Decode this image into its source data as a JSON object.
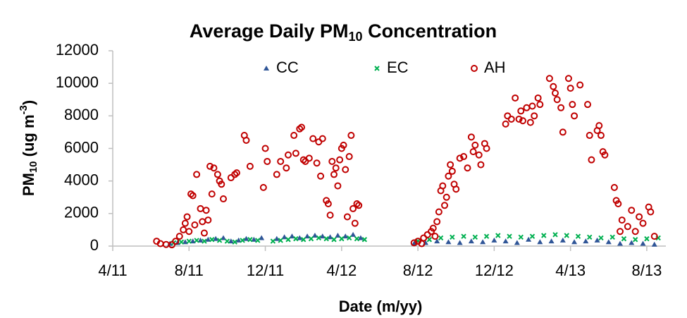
{
  "chart_data": {
    "type": "scatter",
    "title": {
      "text": "Average Daily PM",
      "sub": "10",
      "tail": " Concentration"
    },
    "y_label": {
      "text": "PM",
      "sub": "10",
      "mid": " (ug m",
      "sup": "-3",
      "tail": ")"
    },
    "x_label": "Date (m/yy)",
    "xlim": [
      3,
      32
    ],
    "xticks": [
      {
        "value": 3,
        "label": "4/11"
      },
      {
        "value": 7,
        "label": "8/11"
      },
      {
        "value": 11,
        "label": "12/11"
      },
      {
        "value": 15,
        "label": "4/12"
      },
      {
        "value": 19,
        "label": "8/12"
      },
      {
        "value": 23,
        "label": "12/12"
      },
      {
        "value": 27,
        "label": "4/13"
      },
      {
        "value": 31,
        "label": "8/13"
      }
    ],
    "ylim": [
      0,
      12000
    ],
    "yticks": [
      0,
      2000,
      4000,
      6000,
      8000,
      10000,
      12000
    ],
    "legend": "top",
    "series": [
      {
        "name": "CC",
        "color": "#2f5597",
        "marker": "triangle",
        "x": [
          6.0,
          6.4,
          6.8,
          7.2,
          7.6,
          8.0,
          8.4,
          8.8,
          9.2,
          9.6,
          10.0,
          10.4,
          10.8,
          11.6,
          12.0,
          12.4,
          12.8,
          13.2,
          13.6,
          14.0,
          14.4,
          14.8,
          15.2,
          15.6,
          16.0,
          18.8,
          19.4,
          20.0,
          20.6,
          21.2,
          21.8,
          22.4,
          23.0,
          23.6,
          24.2,
          24.8,
          25.4,
          26.0,
          26.6,
          27.2,
          27.8,
          28.4,
          29.0,
          29.6,
          30.2,
          30.8,
          31.4
        ],
        "values": [
          150,
          200,
          250,
          300,
          350,
          400,
          450,
          500,
          300,
          350,
          450,
          400,
          500,
          450,
          550,
          600,
          500,
          600,
          650,
          600,
          550,
          650,
          600,
          700,
          500,
          150,
          200,
          300,
          250,
          200,
          300,
          250,
          350,
          300,
          200,
          400,
          250,
          300,
          350,
          250,
          300,
          350,
          250,
          150,
          200,
          150,
          100
        ]
      },
      {
        "name": "EC",
        "color": "#00b050",
        "marker": "x",
        "x": [
          6.2,
          6.6,
          7.0,
          7.4,
          7.8,
          8.2,
          8.6,
          9.0,
          9.4,
          9.8,
          10.2,
          10.6,
          11.4,
          11.8,
          12.2,
          12.6,
          13.0,
          13.4,
          13.8,
          14.2,
          14.6,
          15.0,
          15.4,
          15.8,
          16.2,
          19.0,
          19.6,
          20.2,
          20.8,
          21.4,
          22.0,
          22.6,
          23.2,
          23.8,
          24.4,
          25.0,
          25.6,
          26.2,
          26.8,
          27.4,
          28.0,
          28.6,
          29.2,
          29.8,
          30.4,
          31.0,
          31.6
        ],
        "values": [
          200,
          250,
          300,
          350,
          300,
          400,
          350,
          300,
          250,
          350,
          400,
          350,
          300,
          350,
          400,
          450,
          400,
          450,
          500,
          450,
          400,
          450,
          500,
          450,
          400,
          300,
          400,
          500,
          550,
          600,
          550,
          600,
          650,
          600,
          550,
          600,
          650,
          700,
          650,
          600,
          550,
          500,
          550,
          450,
          400,
          450,
          500
        ]
      },
      {
        "name": "AH",
        "color": "#c00000",
        "marker": "circle",
        "x": [
          5.3,
          5.5,
          5.8,
          6.1,
          6.3,
          6.5,
          6.7,
          6.8,
          6.9,
          7.0,
          7.1,
          7.2,
          7.3,
          7.4,
          7.6,
          7.7,
          7.8,
          7.9,
          8.0,
          8.1,
          8.2,
          8.3,
          8.5,
          8.6,
          8.7,
          8.8,
          9.2,
          9.4,
          9.5,
          9.9,
          10.0,
          10.2,
          10.9,
          11.0,
          11.1,
          11.6,
          11.8,
          12.1,
          12.2,
          12.5,
          12.6,
          12.8,
          12.9,
          13.0,
          13.1,
          13.3,
          13.5,
          13.7,
          13.8,
          13.9,
          14.0,
          14.2,
          14.3,
          14.4,
          14.5,
          14.6,
          14.7,
          14.8,
          14.9,
          15.0,
          15.1,
          15.2,
          15.3,
          15.4,
          15.5,
          15.6,
          15.7,
          15.8,
          15.9,
          18.8,
          19.0,
          19.2,
          19.3,
          19.5,
          19.7,
          19.8,
          19.9,
          20.0,
          20.1,
          20.2,
          20.3,
          20.4,
          20.5,
          20.6,
          20.7,
          20.8,
          20.9,
          21.0,
          21.2,
          21.4,
          21.6,
          21.8,
          21.9,
          22.0,
          22.2,
          22.3,
          22.5,
          22.6,
          23.6,
          23.7,
          23.9,
          24.1,
          24.3,
          24.4,
          24.5,
          24.7,
          24.9,
          25.0,
          25.1,
          25.3,
          25.4,
          25.9,
          26.1,
          26.2,
          26.3,
          26.5,
          26.6,
          26.9,
          27.0,
          27.1,
          27.2,
          27.5,
          27.9,
          28.0,
          28.1,
          28.4,
          28.5,
          28.6,
          28.7,
          28.8,
          29.3,
          29.4,
          29.5,
          29.6,
          29.7,
          30.0,
          30.2,
          30.4,
          30.6,
          30.8,
          31.1,
          31.2,
          31.4
        ],
        "values": [
          300,
          150,
          100,
          80,
          300,
          600,
          1000,
          1400,
          1800,
          900,
          3200,
          3100,
          1300,
          4400,
          2300,
          1500,
          800,
          2200,
          1600,
          4900,
          3200,
          4800,
          4400,
          4000,
          3800,
          2900,
          4200,
          4400,
          4500,
          6800,
          6500,
          4900,
          3600,
          6000,
          5200,
          4400,
          5200,
          4800,
          5600,
          6800,
          5700,
          7200,
          7300,
          5300,
          5200,
          5400,
          6600,
          5100,
          6400,
          4300,
          6600,
          2800,
          2600,
          1900,
          5200,
          4400,
          4800,
          3700,
          5300,
          6000,
          6200,
          4700,
          1800,
          5500,
          6800,
          2300,
          1400,
          2600,
          2500,
          200,
          300,
          150,
          500,
          700,
          900,
          1100,
          600,
          1500,
          2100,
          3400,
          3700,
          2500,
          3000,
          4300,
          5000,
          4600,
          3800,
          3500,
          5400,
          5500,
          4800,
          6700,
          5800,
          6200,
          5600,
          5000,
          6300,
          6000,
          7500,
          8000,
          7800,
          9100,
          7800,
          8300,
          7700,
          8500,
          7600,
          8600,
          8000,
          9100,
          8700,
          10300,
          9800,
          9400,
          9000,
          8500,
          7000,
          10300,
          9700,
          8700,
          8000,
          9900,
          8700,
          6800,
          5300,
          7100,
          7400,
          6800,
          5800,
          5600,
          3600,
          2800,
          2600,
          900,
          1600,
          1200,
          2200,
          900,
          1800,
          1400,
          2400,
          2100,
          600
        ]
      }
    ]
  }
}
